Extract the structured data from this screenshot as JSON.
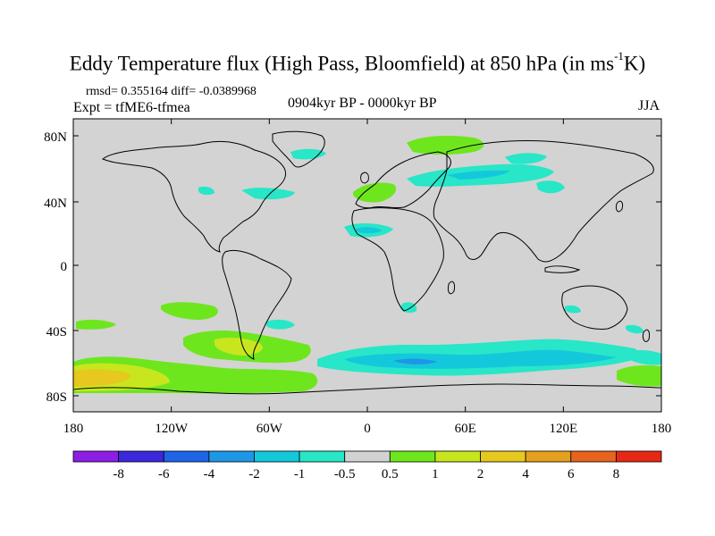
{
  "title": {
    "main": "Eddy Temperature flux (High Pass, Bloomfield) at 850 hPa (in ms",
    "superscript": "-1",
    "unit_end": "K)"
  },
  "stats": "rmsd= 0.355164 diff= -0.0389968",
  "experiment": "Expt = tfME6-tfmea",
  "period": "0904kyr BP - 0000kyr BP",
  "season": "JJA",
  "axes": {
    "lat_ticks": [
      "80N",
      "40N",
      "0",
      "40S",
      "80S"
    ],
    "lon_ticks": [
      "180",
      "120W",
      "60W",
      "0",
      "60E",
      "120E",
      "180"
    ]
  },
  "colorbar": {
    "labels": [
      "-8",
      "-6",
      "-4",
      "-2",
      "-1",
      "-0.5",
      "0.5",
      "1",
      "2",
      "4",
      "6",
      "8"
    ],
    "colors": [
      "#8c1ee6",
      "#3c28dc",
      "#1e64e6",
      "#1e96e6",
      "#14c8dc",
      "#28e6c8",
      "#d2d2d2",
      "#6ee61e",
      "#c8e61e",
      "#e6c81e",
      "#e6a01e",
      "#e6641e",
      "#e62814"
    ]
  },
  "map": {
    "background": "#d3d3d3",
    "coast_color": "#000000"
  }
}
